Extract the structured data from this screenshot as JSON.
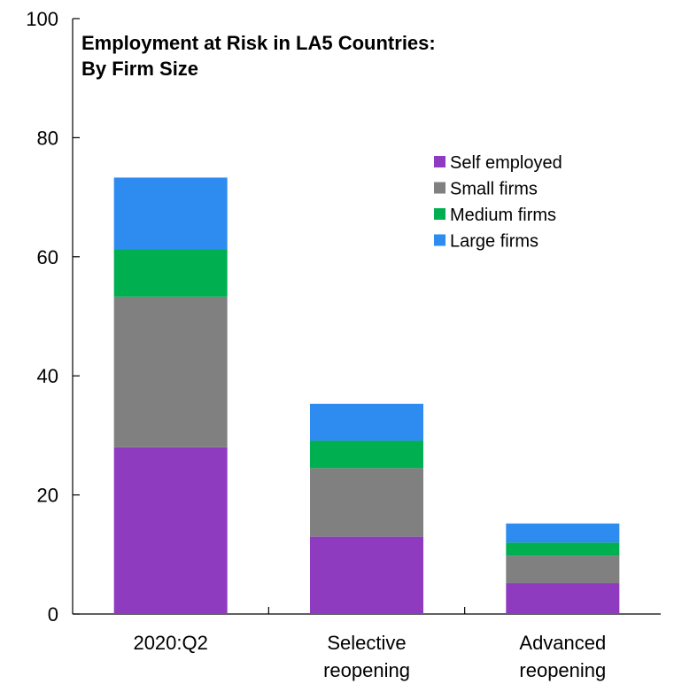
{
  "chart_data": {
    "type": "bar",
    "stacked": true,
    "title_lines": [
      "Employment at Risk in LA5 Countries:",
      "By Firm Size"
    ],
    "categories": [
      [
        "2020:Q2"
      ],
      [
        "Selective",
        "reopening"
      ],
      [
        "Advanced",
        "reopening"
      ]
    ],
    "series": [
      {
        "name": "Self employed",
        "color": "#8e3bc0",
        "values": [
          28,
          13,
          5.2
        ]
      },
      {
        "name": "Small firms",
        "color": "#808080",
        "values": [
          25.3,
          11.5,
          4.6
        ]
      },
      {
        "name": "Medium firms",
        "color": "#00b050",
        "values": [
          8,
          4.6,
          2.2
        ]
      },
      {
        "name": "Large firms",
        "color": "#2e8bf0",
        "values": [
          12,
          6.2,
          3.2
        ]
      }
    ],
    "ylim": [
      0,
      100
    ],
    "yticks": [
      0,
      20,
      40,
      60,
      80,
      100
    ],
    "xlabel": "",
    "ylabel": "",
    "grid": false,
    "legend_position": "top-right"
  }
}
